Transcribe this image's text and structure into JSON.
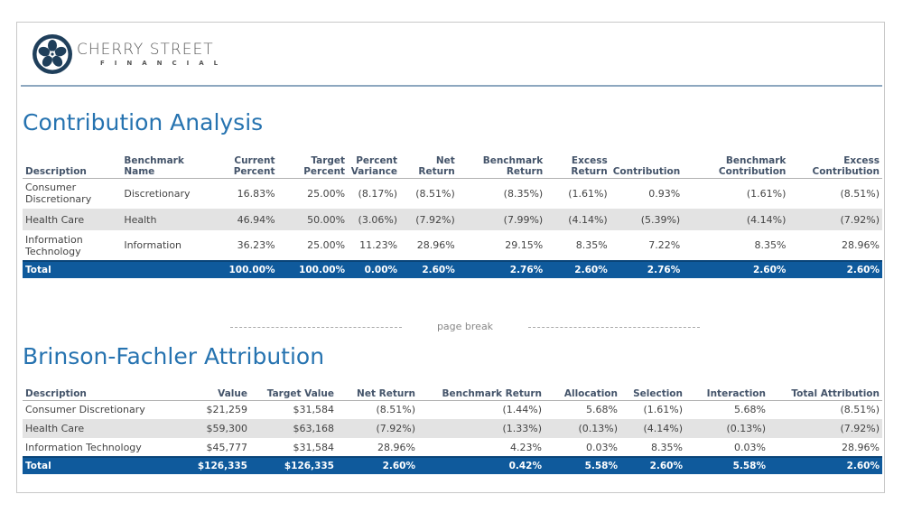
{
  "brand": {
    "name": "CHERRY STREET",
    "sub": "FINANCIAL"
  },
  "contribution": {
    "title": "Contribution Analysis",
    "headers": [
      "Description",
      "Benchmark Name",
      "Current Percent",
      "Target Percent",
      "Percent Variance",
      "Net Return",
      "Benchmark Return",
      "Excess Return",
      "Contribution",
      "Benchmark Contribution",
      "Excess Contribution"
    ],
    "rows": [
      [
        "Consumer Discretionary",
        "Discretionary",
        "16.83%",
        "25.00%",
        "(8.17%)",
        "(8.51%)",
        "(8.35%)",
        "(1.61%)",
        "0.93%",
        "(1.61%)",
        "(8.51%)"
      ],
      [
        "Health Care",
        "Health",
        "46.94%",
        "50.00%",
        "(3.06%)",
        "(7.92%)",
        "(7.99%)",
        "(4.14%)",
        "(5.39%)",
        "(4.14%)",
        "(7.92%)"
      ],
      [
        "Information Technology",
        "Information",
        "36.23%",
        "25.00%",
        "11.23%",
        "28.96%",
        "29.15%",
        "8.35%",
        "7.22%",
        "8.35%",
        "28.96%"
      ]
    ],
    "total": [
      "Total",
      "",
      "100.00%",
      "100.00%",
      "0.00%",
      "2.60%",
      "2.76%",
      "2.60%",
      "2.76%",
      "2.60%",
      "2.60%"
    ]
  },
  "page_break": "page break",
  "brinson": {
    "title": "Brinson-Fachler Attribution",
    "headers": [
      "Description",
      "Value",
      "Target Value",
      "Net Return",
      "Benchmark Return",
      "Allocation",
      "Selection",
      "Interaction",
      "Total Attribution"
    ],
    "rows": [
      [
        "Consumer Discretionary",
        "$21,259",
        "$31,584",
        "(8.51%)",
        "(1.44%)",
        "5.68%",
        "(1.61%)",
        "5.68%",
        "(8.51%)"
      ],
      [
        "Health Care",
        "$59,300",
        "$63,168",
        "(7.92%)",
        "(1.33%)",
        "(0.13%)",
        "(4.14%)",
        "(0.13%)",
        "(7.92%)"
      ],
      [
        "Information Technology",
        "$45,777",
        "$31,584",
        "28.96%",
        "4.23%",
        "0.03%",
        "8.35%",
        "0.03%",
        "28.96%"
      ]
    ],
    "total": [
      "Total",
      "$126,335",
      "$126,335",
      "2.60%",
      "0.42%",
      "5.58%",
      "2.60%",
      "5.58%",
      "2.60%"
    ]
  }
}
